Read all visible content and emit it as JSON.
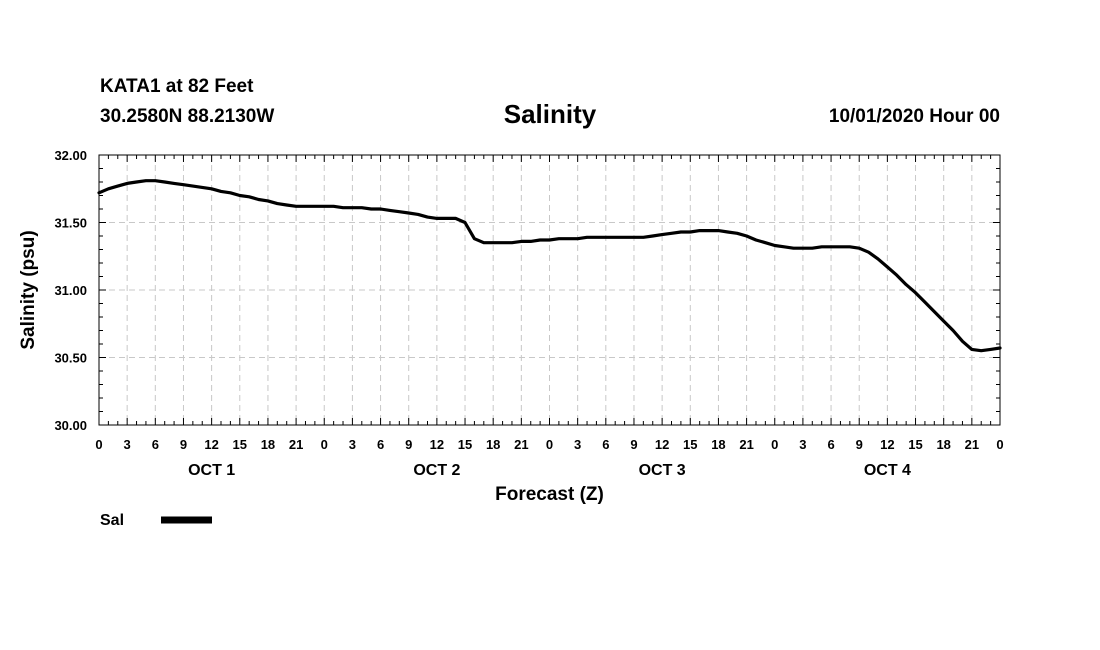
{
  "header": {
    "station": "KATA1 at 82 Feet",
    "coords": "30.2580N 88.2130W",
    "title": "Salinity",
    "datetime": "10/01/2020 Hour 00"
  },
  "chart_data": {
    "type": "line",
    "title": "Salinity",
    "xlabel": "Forecast (Z)",
    "ylabel": "Salinity (psu)",
    "ylim": [
      30.0,
      32.0
    ],
    "xlim": [
      0,
      96
    ],
    "grid": true,
    "y_ticks": [
      "30.00",
      "30.50",
      "31.00",
      "31.50",
      "32.00"
    ],
    "x_tick_labels": [
      "0",
      "3",
      "6",
      "9",
      "12",
      "15",
      "18",
      "21",
      "0",
      "3",
      "6",
      "9",
      "12",
      "15",
      "18",
      "21",
      "0",
      "3",
      "6",
      "9",
      "12",
      "15",
      "18",
      "21",
      "0",
      "3",
      "6",
      "9",
      "12",
      "15",
      "18",
      "21",
      "0"
    ],
    "day_labels": [
      "OCT 1",
      "OCT 2",
      "OCT 3",
      "OCT 4"
    ],
    "legend": {
      "placement": "bottom-left",
      "entries": [
        "Sal"
      ]
    },
    "series": [
      {
        "name": "Sal",
        "color": "#000000",
        "x": [
          0,
          1,
          2,
          3,
          4,
          5,
          6,
          7,
          8,
          9,
          10,
          11,
          12,
          13,
          14,
          15,
          16,
          17,
          18,
          19,
          20,
          21,
          22,
          23,
          24,
          25,
          26,
          27,
          28,
          29,
          30,
          31,
          32,
          33,
          34,
          35,
          36,
          37,
          38,
          39,
          40,
          41,
          42,
          43,
          44,
          45,
          46,
          47,
          48,
          49,
          50,
          51,
          52,
          53,
          54,
          55,
          56,
          57,
          58,
          59,
          60,
          61,
          62,
          63,
          64,
          65,
          66,
          67,
          68,
          69,
          70,
          71,
          72,
          73,
          74,
          75,
          76,
          77,
          78,
          79,
          80,
          81,
          82,
          83,
          84,
          85,
          86,
          87,
          88,
          89,
          90,
          91,
          92,
          93,
          94,
          95,
          96
        ],
        "values": [
          31.72,
          31.75,
          31.77,
          31.79,
          31.8,
          31.81,
          31.81,
          31.8,
          31.79,
          31.78,
          31.77,
          31.76,
          31.75,
          31.73,
          31.72,
          31.7,
          31.69,
          31.67,
          31.66,
          31.64,
          31.63,
          31.62,
          31.62,
          31.62,
          31.62,
          31.62,
          31.61,
          31.61,
          31.61,
          31.6,
          31.6,
          31.59,
          31.58,
          31.57,
          31.56,
          31.54,
          31.53,
          31.53,
          31.53,
          31.5,
          31.38,
          31.35,
          31.35,
          31.35,
          31.35,
          31.36,
          31.36,
          31.37,
          31.37,
          31.38,
          31.38,
          31.38,
          31.39,
          31.39,
          31.39,
          31.39,
          31.39,
          31.39,
          31.39,
          31.4,
          31.41,
          31.42,
          31.43,
          31.43,
          31.44,
          31.44,
          31.44,
          31.43,
          31.42,
          31.4,
          31.37,
          31.35,
          31.33,
          31.32,
          31.31,
          31.31,
          31.31,
          31.32,
          31.32,
          31.32,
          31.32,
          31.31,
          31.28,
          31.23,
          31.17,
          31.11,
          31.04,
          30.98,
          30.91,
          30.84,
          30.77,
          30.7,
          30.62,
          30.56,
          30.55,
          30.56,
          30.57
        ]
      }
    ]
  }
}
